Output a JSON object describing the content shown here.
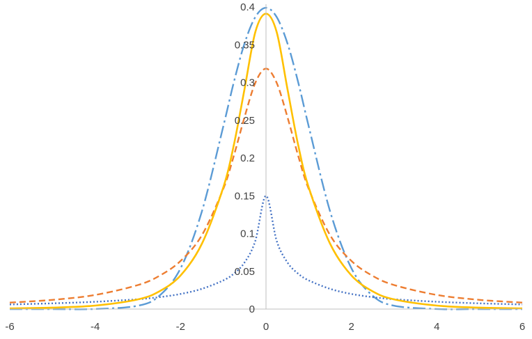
{
  "chart_data": {
    "type": "line",
    "title": "",
    "xlabel": "",
    "ylabel": "",
    "xlim": [
      -6,
      6
    ],
    "ylim": [
      0,
      0.4
    ],
    "grid": false,
    "legend": "none",
    "x_ticks": [
      {
        "value": -6,
        "label": "-6"
      },
      {
        "value": -4,
        "label": "-4"
      },
      {
        "value": -2,
        "label": "-2"
      },
      {
        "value": 0,
        "label": "0"
      },
      {
        "value": 2,
        "label": "2"
      },
      {
        "value": 4,
        "label": "4"
      },
      {
        "value": 6,
        "label": "6"
      }
    ],
    "y_ticks": [
      {
        "value": 0,
        "label": "0"
      },
      {
        "value": 0.05,
        "label": "0.05"
      },
      {
        "value": 0.1,
        "label": "0.1"
      },
      {
        "value": 0.15,
        "label": "0.15"
      },
      {
        "value": 0.2,
        "label": "0.2"
      },
      {
        "value": 0.25,
        "label": "0.25"
      },
      {
        "value": 0.3,
        "label": "0.3"
      },
      {
        "value": 0.35,
        "label": "0.35"
      },
      {
        "value": 0.4,
        "label": "0.4"
      }
    ],
    "x": [
      -6,
      -5,
      -4,
      -3,
      -2.5,
      -2,
      -1.5,
      -1,
      -0.75,
      -0.5,
      -0.25,
      0,
      0.25,
      0.5,
      0.75,
      1,
      1.5,
      2,
      2.5,
      3,
      4,
      5,
      6
    ],
    "series": [
      {
        "color": "#5b9bd5",
        "dash": "dash-dot",
        "values": [
          0.0,
          0.0,
          0.0001,
          0.0044,
          0.0175,
          0.054,
          0.1295,
          0.242,
          0.3011,
          0.3521,
          0.3867,
          0.3989,
          0.3867,
          0.3521,
          0.3011,
          0.242,
          0.1295,
          0.054,
          0.0175,
          0.0044,
          0.0001,
          0.0,
          0.0
        ]
      },
      {
        "color": "#ed7d31",
        "dash": "dashed",
        "values": [
          0.0086,
          0.0122,
          0.0187,
          0.0318,
          0.0439,
          0.0637,
          0.0979,
          0.1592,
          0.2037,
          0.2546,
          0.2996,
          0.3183,
          0.2996,
          0.2546,
          0.2037,
          0.1592,
          0.0979,
          0.0637,
          0.0439,
          0.0318,
          0.0187,
          0.0122,
          0.0086
        ]
      },
      {
        "color": "#4472c4",
        "dash": "dotted",
        "values": [
          0.0061,
          0.0076,
          0.0097,
          0.013,
          0.0158,
          0.02,
          0.0268,
          0.038,
          0.047,
          0.0618,
          0.0904,
          0.15,
          0.0904,
          0.0618,
          0.047,
          0.038,
          0.0268,
          0.02,
          0.0158,
          0.013,
          0.0097,
          0.0076,
          0.0061
        ]
      },
      {
        "color": "#ffc000",
        "dash": "solid",
        "values": [
          0.0008,
          0.0019,
          0.0046,
          0.0128,
          0.0234,
          0.0445,
          0.0866,
          0.1611,
          0.2181,
          0.292,
          0.3669,
          0.3911,
          0.3669,
          0.292,
          0.2181,
          0.1611,
          0.0866,
          0.0445,
          0.0234,
          0.0128,
          0.0046,
          0.0019,
          0.0008
        ]
      }
    ]
  }
}
